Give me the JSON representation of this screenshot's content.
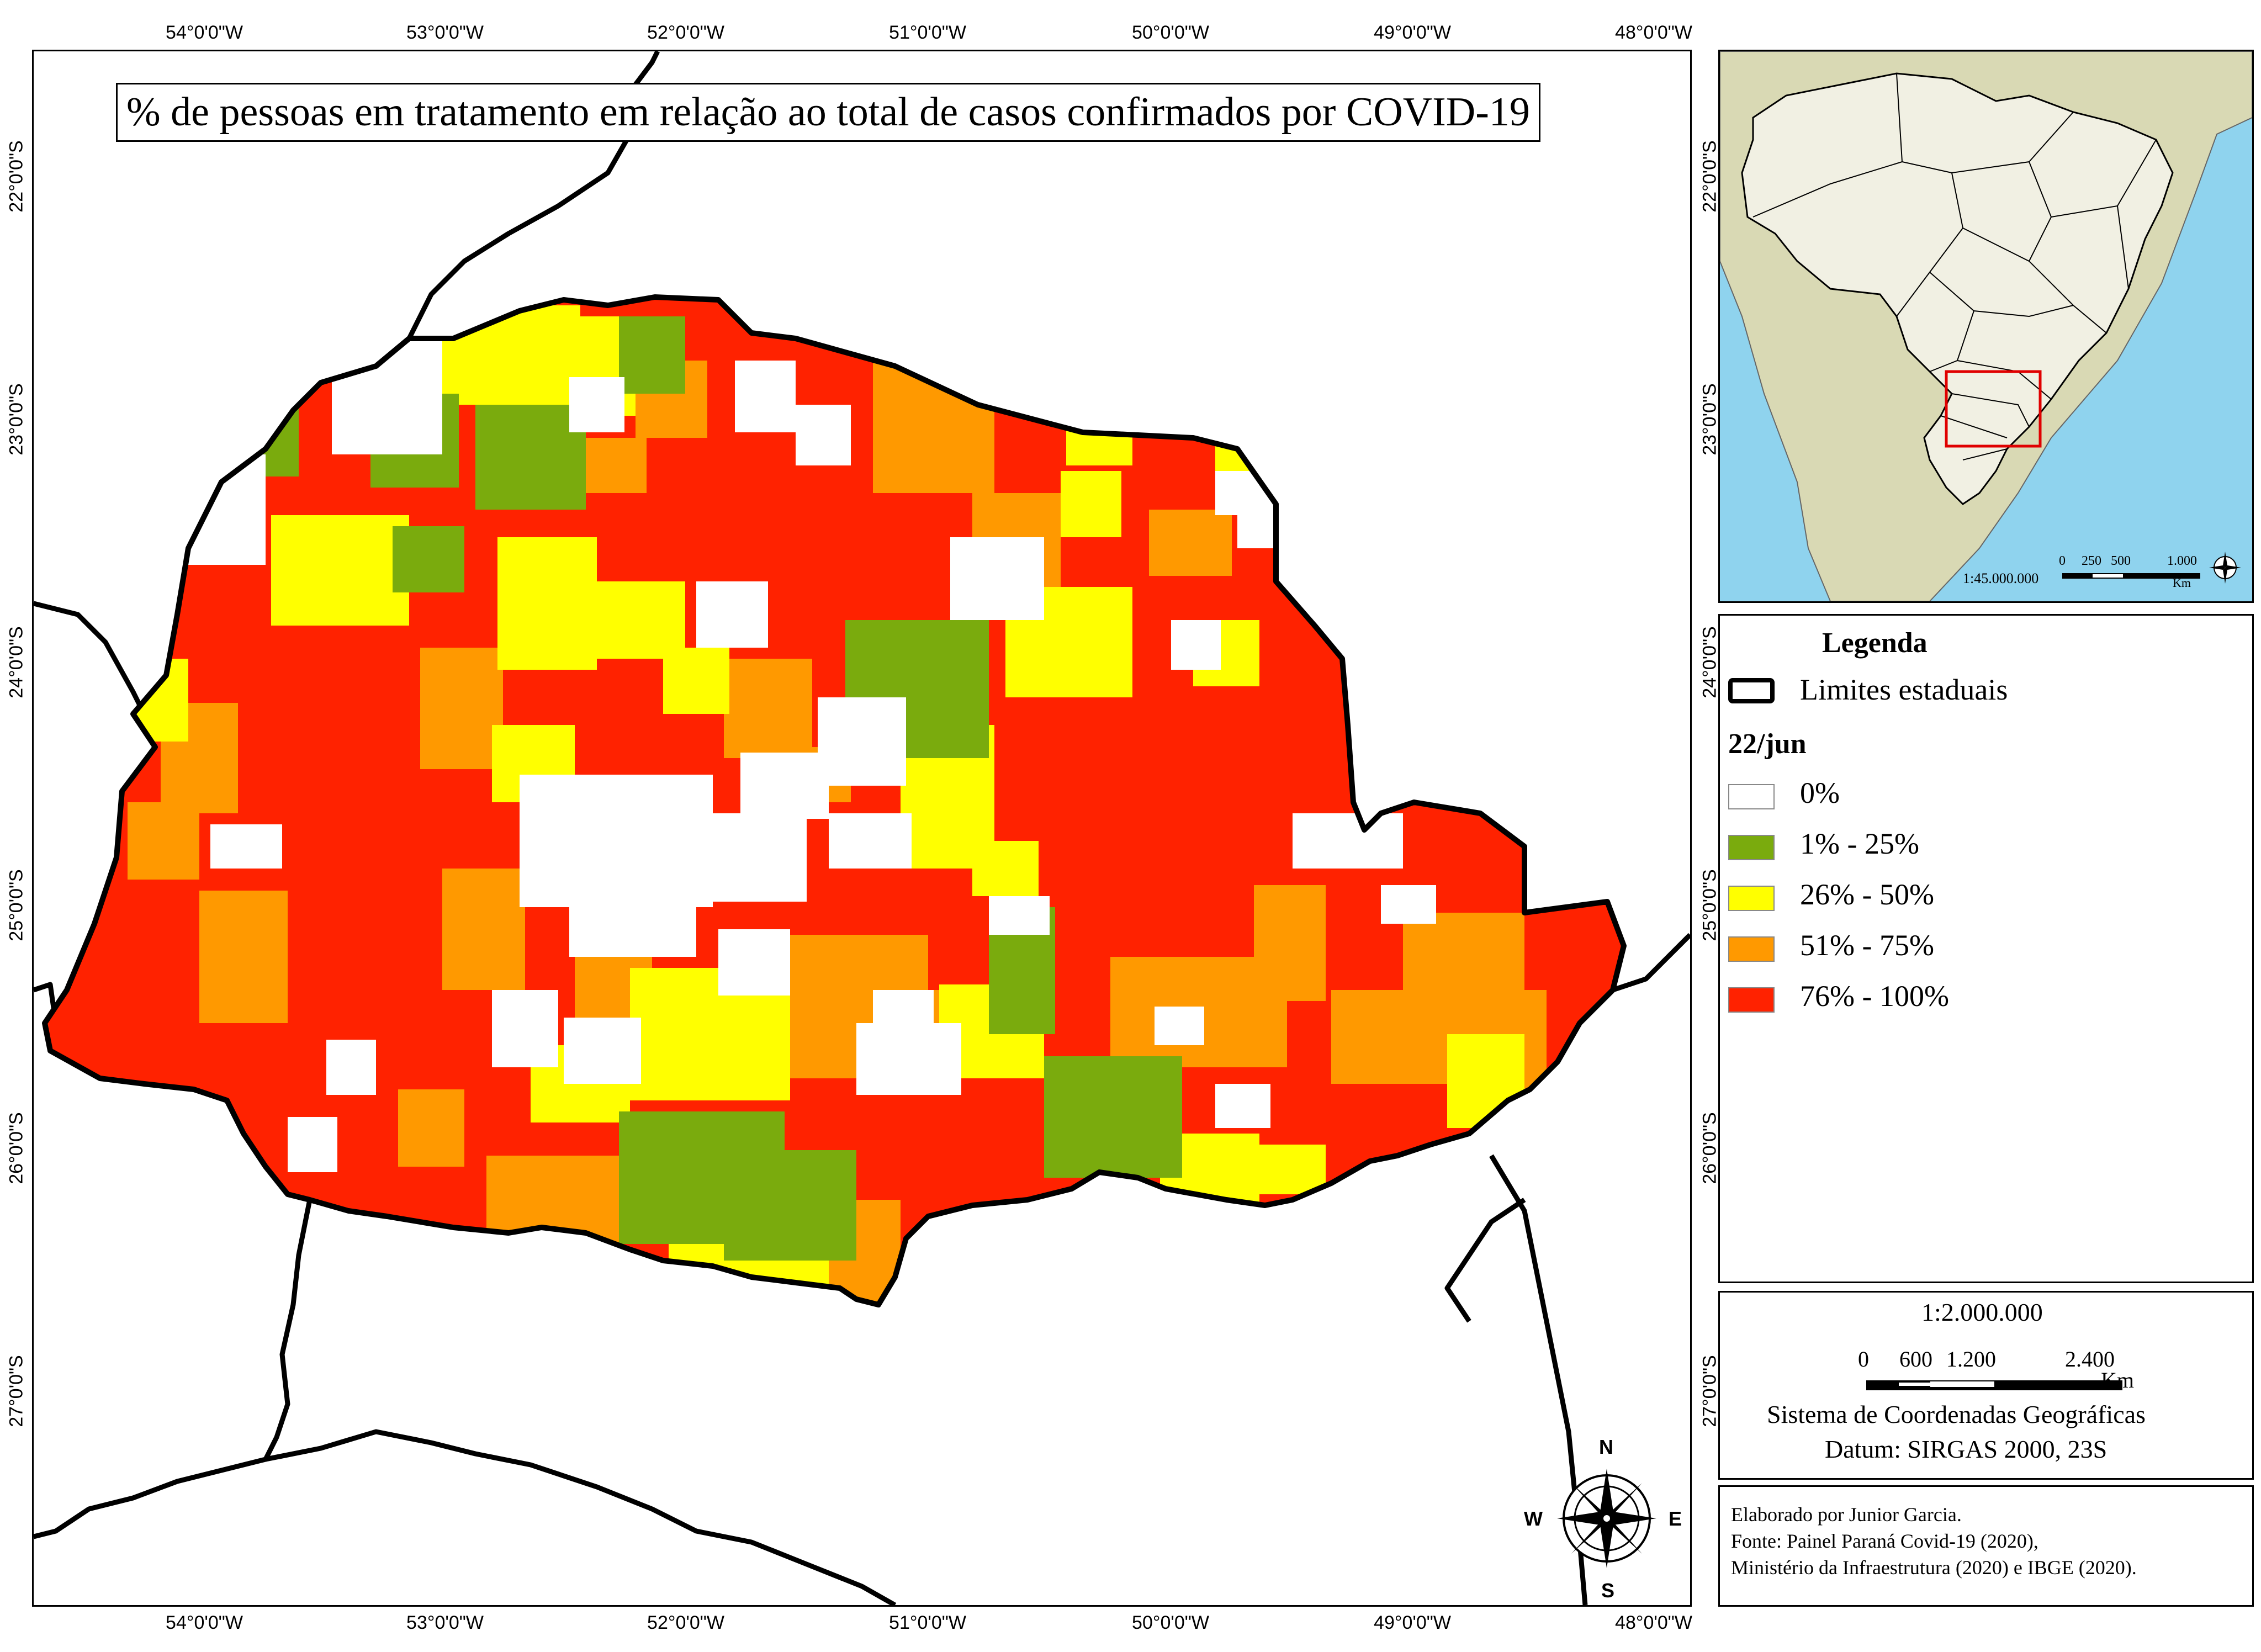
{
  "title": "% de pessoas em tratamento em relação ao total de casos confirmados por COVID-19",
  "grid": {
    "longitudes": [
      "54°0'0\"W",
      "53°0'0\"W",
      "52°0'0\"W",
      "51°0'0\"W",
      "50°0'0\"W",
      "49°0'0\"W",
      "48°0'0\"W"
    ],
    "latitudes": [
      "22°0'0\"S",
      "23°0'0\"S",
      "24°0'0\"S",
      "25°0'0\"S",
      "26°0'0\"S",
      "27°0'0\"S"
    ]
  },
  "inset": {
    "scale": "1:45.000.000",
    "bar_labels": [
      "0",
      "250",
      "500",
      "1.000"
    ],
    "bar_unit": "Km"
  },
  "legend": {
    "title": "Legenda",
    "boundary_label": "Limites estaduais",
    "date": "22/jun",
    "classes": [
      {
        "label": "0%",
        "color": "#ffffff"
      },
      {
        "label": "1% - 25%",
        "color": "#7aab0d"
      },
      {
        "label": "26% - 50%",
        "color": "#ffff00"
      },
      {
        "label": "51% - 75%",
        "color": "#ff9900"
      },
      {
        "label": "76% - 100%",
        "color": "#ff2200"
      }
    ]
  },
  "scale_box": {
    "ratio": "1:2.000.000",
    "bar_labels": [
      "0",
      "600",
      "1.200",
      "2.400"
    ],
    "unit": "Km",
    "crs": "Sistema de Coordenadas Geográficas",
    "datum": "Datum: SIRGAS 2000, 23S"
  },
  "credits": {
    "line1": "Elaborado por Junior Garcia.",
    "line2": "Fonte: Painel Paraná Covid-19 (2020),",
    "line3": "Ministério da Infraestrutura (2020) e IBGE (2020)."
  },
  "compass": {
    "n": "N",
    "s": "S",
    "e": "E",
    "w": "W"
  },
  "colors": {
    "ocean": "#8fd3ee",
    "land_other": "#d9d9b4",
    "brazil": "#f1f0e3",
    "highlight_box": "#e00000"
  }
}
